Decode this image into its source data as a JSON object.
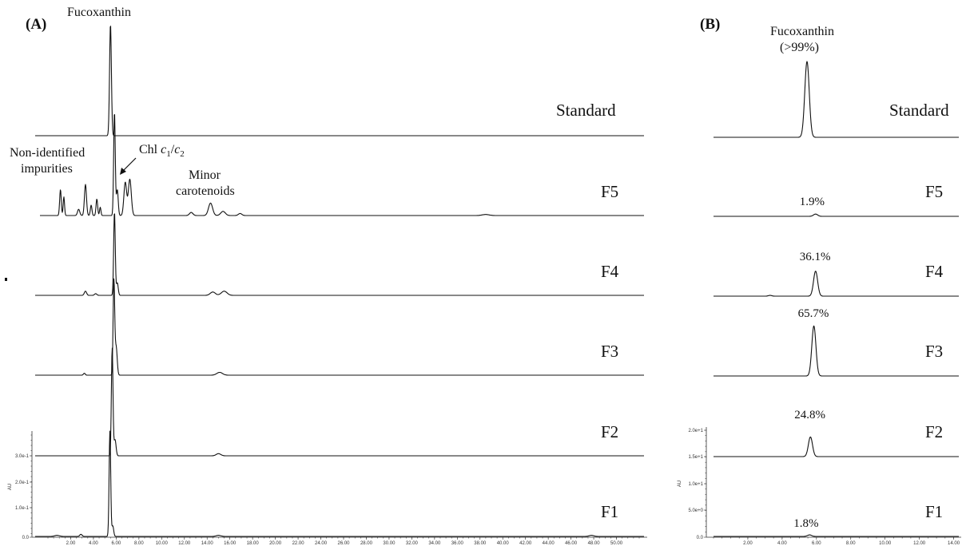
{
  "chart_data": [
    {
      "panel": "(A)",
      "type": "line",
      "xlim": [
        0,
        52
      ],
      "x_ticks": [
        "2.00",
        "4.00",
        "6.00",
        "8.00",
        "10.00",
        "12.00",
        "14.00",
        "16.00",
        "18.00",
        "20.00",
        "22.00",
        "24.00",
        "26.00",
        "28.00",
        "30.00",
        "32.00",
        "34.00",
        "36.00",
        "38.00",
        "40.00",
        "42.00",
        "44.00",
        "46.00",
        "48.00",
        "50.00"
      ],
      "ylabel": "AU",
      "y_ticks": [
        "0.0",
        "1.0e-1",
        "2.0e-1",
        "3.0e-1"
      ],
      "series": [
        {
          "name": "Standard",
          "peaks": [
            {
              "x": 5.5,
              "h": 1.0,
              "w": 0.08
            }
          ]
        },
        {
          "name": "F5",
          "peaks": [
            {
              "x": 1.1,
              "h": 0.25,
              "w": 0.07
            },
            {
              "x": 1.4,
              "h": 0.18,
              "w": 0.06
            },
            {
              "x": 2.7,
              "h": 0.06,
              "w": 0.1
            },
            {
              "x": 3.3,
              "h": 0.3,
              "w": 0.09
            },
            {
              "x": 3.8,
              "h": 0.1,
              "w": 0.07
            },
            {
              "x": 4.3,
              "h": 0.16,
              "w": 0.07
            },
            {
              "x": 4.6,
              "h": 0.08,
              "w": 0.06
            },
            {
              "x": 5.85,
              "h": 1.0,
              "w": 0.07
            },
            {
              "x": 6.1,
              "h": 0.25,
              "w": 0.08
            },
            {
              "x": 6.8,
              "h": 0.32,
              "w": 0.12
            },
            {
              "x": 7.2,
              "h": 0.35,
              "w": 0.13
            },
            {
              "x": 12.6,
              "h": 0.03,
              "w": 0.15
            },
            {
              "x": 14.3,
              "h": 0.12,
              "w": 0.18
            },
            {
              "x": 15.4,
              "h": 0.04,
              "w": 0.2
            },
            {
              "x": 16.9,
              "h": 0.02,
              "w": 0.15
            },
            {
              "x": 38.5,
              "h": 0.01,
              "w": 0.3
            }
          ]
        },
        {
          "name": "F4",
          "peaks": [
            {
              "x": 3.3,
              "h": 0.05,
              "w": 0.1
            },
            {
              "x": 4.2,
              "h": 0.02,
              "w": 0.1
            },
            {
              "x": 5.85,
              "h": 1.0,
              "w": 0.07
            },
            {
              "x": 6.1,
              "h": 0.15,
              "w": 0.08
            },
            {
              "x": 14.5,
              "h": 0.04,
              "w": 0.22
            },
            {
              "x": 15.5,
              "h": 0.05,
              "w": 0.25
            }
          ]
        },
        {
          "name": "F3",
          "peaks": [
            {
              "x": 3.2,
              "h": 0.02,
              "w": 0.08
            },
            {
              "x": 5.8,
              "h": 1.0,
              "w": 0.07
            },
            {
              "x": 6.0,
              "h": 0.3,
              "w": 0.09
            },
            {
              "x": 15.1,
              "h": 0.03,
              "w": 0.25
            }
          ]
        },
        {
          "name": "F2",
          "peaks": [
            {
              "x": 5.65,
              "h": 1.0,
              "w": 0.07
            },
            {
              "x": 5.9,
              "h": 0.15,
              "w": 0.09
            },
            {
              "x": 15.0,
              "h": 0.02,
              "w": 0.2
            }
          ]
        },
        {
          "name": "F1",
          "peaks": [
            {
              "x": 0.8,
              "h": 0.01,
              "w": 0.2
            },
            {
              "x": 2.9,
              "h": 0.02,
              "w": 0.1
            },
            {
              "x": 5.45,
              "h": 1.0,
              "w": 0.07
            },
            {
              "x": 5.7,
              "h": 0.1,
              "w": 0.08
            },
            {
              "x": 15.0,
              "h": 0.01,
              "w": 0.2
            },
            {
              "x": 47.8,
              "h": 0.01,
              "w": 0.2
            }
          ]
        }
      ],
      "annotations": {
        "fucoxanthin": "Fucoxanthin",
        "impurities_line1": "Non-identified",
        "impurities_line2": "impurities",
        "chl_prefix": "Chl ",
        "chl_c1": "c",
        "chl_sub1": "1",
        "chl_slash": "/",
        "chl_c2": "c",
        "chl_sub2": "2",
        "minor_line1": "Minor",
        "minor_line2": "carotenoids"
      }
    },
    {
      "panel": "(B)",
      "type": "line",
      "xlim": [
        0,
        14.3
      ],
      "x_ticks": [
        "2.00",
        "4.00",
        "6.00",
        "8.00",
        "10.00",
        "12.00",
        "14.00"
      ],
      "ylabel": "AU",
      "y_ticks": [
        "0.0",
        "5.0e+0",
        "1.0e+1",
        "1.5e+1",
        "2.0e+1"
      ],
      "series": [
        {
          "name": "Standard",
          "peaks": [
            {
              "x": 5.45,
              "h": 1.0,
              "w": 0.13
            }
          ],
          "label": "Fucoxanthin",
          "label2": "(>99%)"
        },
        {
          "name": "F5",
          "peaks": [
            {
              "x": 5.95,
              "h": 0.03,
              "w": 0.12
            }
          ],
          "label": "1.9%"
        },
        {
          "name": "F4",
          "peaks": [
            {
              "x": 5.95,
              "h": 0.33,
              "w": 0.12
            },
            {
              "x": 3.3,
              "h": 0.01,
              "w": 0.1
            }
          ],
          "label": "36.1%"
        },
        {
          "name": "F3",
          "peaks": [
            {
              "x": 5.85,
              "h": 0.66,
              "w": 0.12
            }
          ],
          "label": "65.7%"
        },
        {
          "name": "F2",
          "peaks": [
            {
              "x": 5.65,
              "h": 0.26,
              "w": 0.12
            }
          ],
          "label": "24.8%"
        },
        {
          "name": "F1",
          "peaks": [
            {
              "x": 5.6,
              "h": 0.02,
              "w": 0.12
            }
          ],
          "label": "1.8%"
        }
      ]
    }
  ]
}
